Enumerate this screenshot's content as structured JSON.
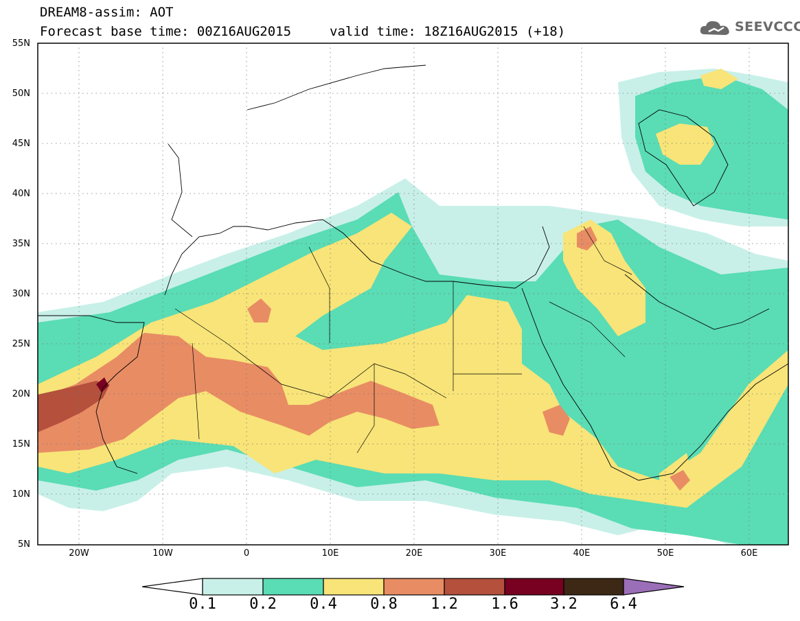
{
  "header": {
    "line1": "DREAM8-assim: AOT",
    "line2": "Forecast base time: 00Z16AUG2015",
    "valid": "valid time: 18Z16AUG2015 (+18)",
    "logo_text": "SEEVCCC"
  },
  "map": {
    "lat_labels": [
      "55N",
      "50N",
      "45N",
      "40N",
      "35N",
      "30N",
      "25N",
      "20N",
      "15N",
      "10N",
      "5N"
    ],
    "lon_labels": [
      "20W",
      "10W",
      "0",
      "10E",
      "20E",
      "30E",
      "40E",
      "50E",
      "60E"
    ]
  },
  "colorbar": {
    "labels": [
      "0.1",
      "0.2",
      "0.4",
      "0.8",
      "1.2",
      "1.6",
      "3.2",
      "6.4"
    ],
    "colors": [
      "#ffffff",
      "#c8f0e8",
      "#5adcb4",
      "#f8e478",
      "#e88c64",
      "#b4503c",
      "#780020",
      "#3c2814",
      "#9b6fb8"
    ]
  },
  "palette": {
    "c01": "#c8f0e8",
    "c02": "#5adcb4",
    "c04": "#f8e478",
    "c08": "#e88c64",
    "c12": "#b4503c",
    "c16": "#780020"
  }
}
